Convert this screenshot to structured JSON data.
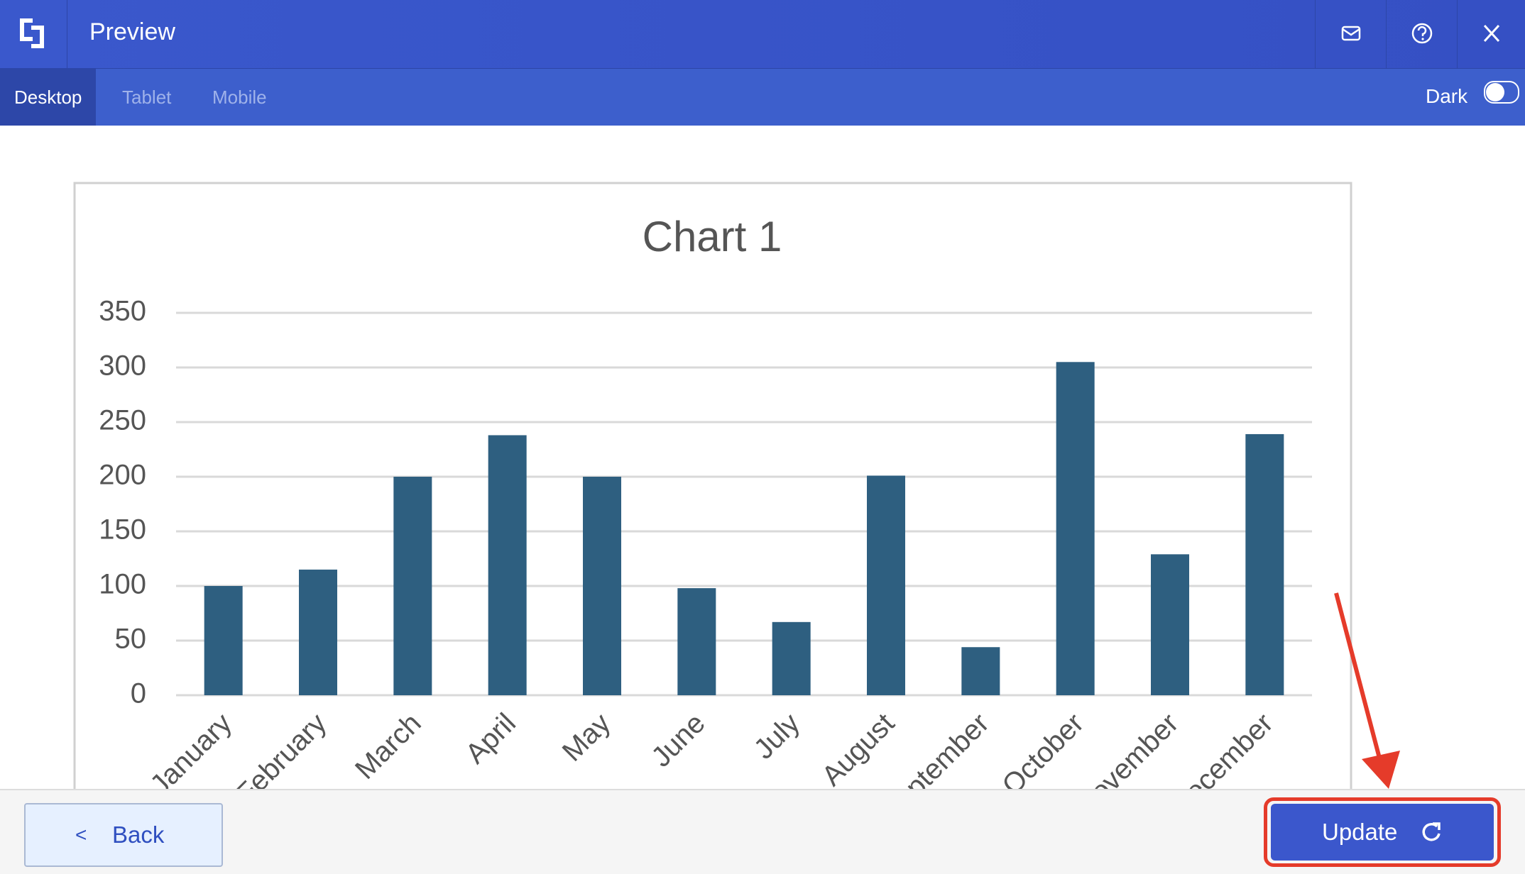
{
  "header": {
    "title": "Preview"
  },
  "tabs": [
    "Desktop",
    "Tablet",
    "Mobile"
  ],
  "dark_toggle": {
    "label": "Dark"
  },
  "chart_data": {
    "type": "bar",
    "title": "Chart 1",
    "categories": [
      "January",
      "February",
      "March",
      "April",
      "May",
      "June",
      "July",
      "August",
      "September",
      "October",
      "November",
      "December"
    ],
    "values": [
      100,
      115,
      200,
      238,
      200,
      98,
      67,
      201,
      44,
      305,
      129,
      239
    ],
    "color": "#2e5f80",
    "ylim": [
      0,
      350
    ],
    "yticks": [
      0,
      50,
      100,
      150,
      200,
      250,
      300,
      350
    ],
    "grid": true
  },
  "footer": {
    "back": "Back",
    "update": "Update"
  }
}
